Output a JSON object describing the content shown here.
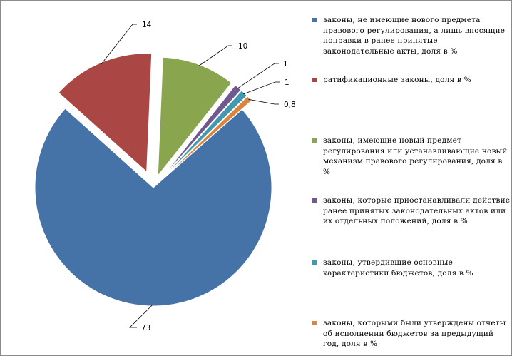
{
  "chart_data": {
    "type": "pie",
    "slices": [
      {
        "label": "законы, не имеющие нового предмета правового регулирования, а лишь вносящие поправки в ранее принятые законодательные акты, доля в %",
        "value": 73,
        "value_label": "73",
        "color": "#4572a7",
        "exploded": true
      },
      {
        "label": "ратификационные законы, доля в %",
        "value": 14,
        "value_label": "14",
        "color": "#aa4643",
        "exploded": true
      },
      {
        "label": "законы, имеющие новый предмет регулирования или устанавливающие новый механизм правового регулирования, доля в %",
        "value": 10,
        "value_label": "10",
        "color": "#89a54e",
        "exploded": true
      },
      {
        "label": "законы, которые приостанавливали действие ранее принятых законодательных актов или их отдельных положений, доля в %",
        "value": 1,
        "value_label": "1",
        "color": "#71588f",
        "exploded": true
      },
      {
        "label": "законы, утвердившие основные характеристики бюджетов, доля в %",
        "value": 1,
        "value_label": "1",
        "color": "#4198af",
        "exploded": true
      },
      {
        "label": "законы, которыми были утверждены отчеты об исполнении бюджетов за предыдущий год, доля в %",
        "value": 0.8,
        "value_label": "0,8",
        "color": "#db843d",
        "exploded": true
      }
    ],
    "legend_position": "right"
  }
}
